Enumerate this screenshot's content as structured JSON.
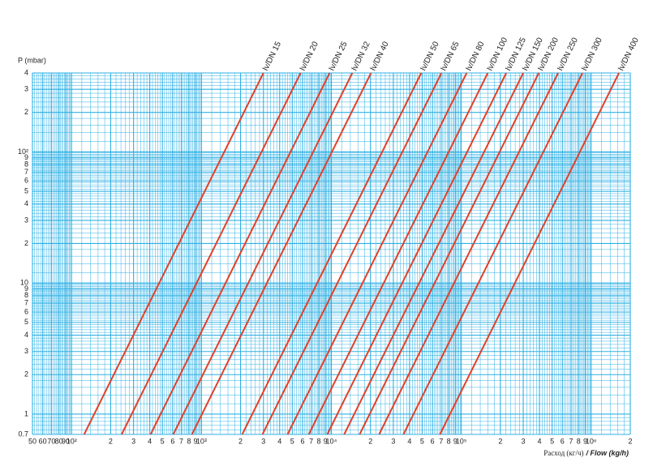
{
  "chart_data": {
    "type": "line",
    "y_label": "P (mbar)",
    "x_label": "Расход (кг/ч)",
    "x_label_en": "/ Flow (kg/h)",
    "log_x": true,
    "log_y": true,
    "grid": true,
    "minor_grid": 5,
    "grid_color": "#2fb0e4",
    "xlim": [
      50,
      2000000
    ],
    "ylim": [
      0.7,
      400
    ],
    "xticks": [
      50,
      60,
      70,
      80,
      90,
      {
        "value": 100,
        "label": "10²"
      },
      {
        "value": 200,
        "label": "2"
      },
      {
        "value": 300,
        "label": "3"
      },
      {
        "value": 400,
        "label": "4"
      },
      {
        "value": 500,
        "label": "5"
      },
      {
        "value": 600,
        "label": "6"
      },
      {
        "value": 700,
        "label": "7"
      },
      {
        "value": 800,
        "label": "8"
      },
      {
        "value": 900,
        "label": "9"
      },
      {
        "value": 1000,
        "label": "10³"
      },
      {
        "value": 2000,
        "label": "2"
      },
      {
        "value": 3000,
        "label": "3"
      },
      {
        "value": 4000,
        "label": "4"
      },
      {
        "value": 5000,
        "label": "5"
      },
      {
        "value": 6000,
        "label": "6"
      },
      {
        "value": 7000,
        "label": "7"
      },
      {
        "value": 8000,
        "label": "8"
      },
      {
        "value": 9000,
        "label": "9"
      },
      {
        "value": 10000,
        "label": "10⁴"
      },
      {
        "value": 20000,
        "label": "2"
      },
      {
        "value": 30000,
        "label": "3"
      },
      {
        "value": 40000,
        "label": "4"
      },
      {
        "value": 50000,
        "label": "5"
      },
      {
        "value": 60000,
        "label": "6"
      },
      {
        "value": 70000,
        "label": "7"
      },
      {
        "value": 80000,
        "label": "8"
      },
      {
        "value": 90000,
        "label": "9"
      },
      {
        "value": 100000,
        "label": "10⁵"
      },
      {
        "value": 200000,
        "label": "2"
      },
      {
        "value": 300000,
        "label": "3"
      },
      {
        "value": 400000,
        "label": "4"
      },
      {
        "value": 500000,
        "label": "5"
      },
      {
        "value": 600000,
        "label": "6"
      },
      {
        "value": 700000,
        "label": "7"
      },
      {
        "value": 800000,
        "label": "8"
      },
      {
        "value": 900000,
        "label": "9"
      },
      {
        "value": 1000000,
        "label": "10⁶"
      },
      {
        "value": 2000000,
        "label": "2"
      }
    ],
    "yticks": [
      0.7,
      1,
      2,
      3,
      4,
      5,
      6,
      7,
      8,
      9,
      10,
      {
        "value": 20,
        "label": "2"
      },
      {
        "value": 30,
        "label": "3"
      },
      {
        "value": 40,
        "label": "4"
      },
      {
        "value": 50,
        "label": "5"
      },
      {
        "value": 60,
        "label": "6"
      },
      {
        "value": 70,
        "label": "7"
      },
      {
        "value": 80,
        "label": "8"
      },
      {
        "value": 90,
        "label": "9"
      },
      {
        "value": 100,
        "label": "10²"
      },
      {
        "value": 200,
        "label": "2"
      },
      {
        "value": 300,
        "label": "3"
      },
      {
        "value": 400,
        "label": "4"
      }
    ],
    "series": [
      {
        "name": "Iv/DN 15",
        "color": "#e0412a",
        "x": [
          125,
          3000
        ],
        "values": [
          0.7,
          400
        ]
      },
      {
        "name": "Iv/DN 20",
        "color": "#e0412a",
        "x": [
          243,
          5800
        ],
        "values": [
          0.7,
          400
        ]
      },
      {
        "name": "Iv/DN 25",
        "color": "#e0412a",
        "x": [
          406,
          9700
        ],
        "values": [
          0.7,
          400
        ]
      },
      {
        "name": "Iv/DN 32",
        "color": "#e0412a",
        "x": [
          607,
          14500
        ],
        "values": [
          0.7,
          400
        ]
      },
      {
        "name": "Iv/DN 40",
        "color": "#e0412a",
        "x": [
          845,
          20200
        ],
        "values": [
          0.7,
          400
        ]
      },
      {
        "name": "Iv/DN 50",
        "color": "#e0412a",
        "x": [
          2060,
          49200
        ],
        "values": [
          0.7,
          400
        ]
      },
      {
        "name": "Iv/DN 65",
        "color": "#e0412a",
        "x": [
          2950,
          70400
        ],
        "values": [
          0.7,
          400
        ]
      },
      {
        "name": "Iv/DN 80",
        "color": "#e0412a",
        "x": [
          4600,
          110000
        ],
        "values": [
          0.7,
          400
        ]
      },
      {
        "name": "Iv/DN 100",
        "color": "#e0412a",
        "x": [
          6700,
          160000
        ],
        "values": [
          0.7,
          400
        ]
      },
      {
        "name": "Iv/DN 125",
        "color": "#e0412a",
        "x": [
          9300,
          222000
        ],
        "values": [
          0.7,
          400
        ]
      },
      {
        "name": "Iv/DN 150",
        "color": "#e0412a",
        "x": [
          12550,
          300000
        ],
        "values": [
          0.7,
          400
        ]
      },
      {
        "name": "Iv/DN 200",
        "color": "#e0412a",
        "x": [
          16500,
          395000
        ],
        "values": [
          0.7,
          400
        ]
      },
      {
        "name": "Iv/DN 250",
        "color": "#e0412a",
        "x": [
          23300,
          557000
        ],
        "values": [
          0.7,
          400
        ]
      },
      {
        "name": "Iv/DN 300",
        "color": "#e0412a",
        "x": [
          35900,
          857000
        ],
        "values": [
          0.7,
          400
        ]
      },
      {
        "name": "Iv/DN 400",
        "color": "#e0412a",
        "x": [
          68500,
          1637000
        ],
        "values": [
          0.7,
          400
        ]
      }
    ]
  }
}
